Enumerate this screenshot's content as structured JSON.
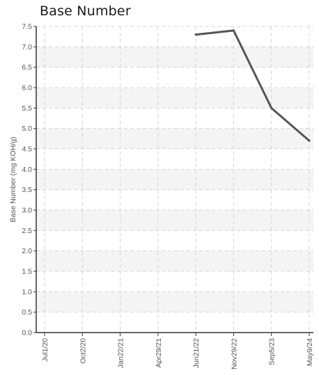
{
  "chart_data": {
    "type": "line",
    "title": "Base Number",
    "ylabel": "Base Number (mg KOH/g)",
    "xlabel": "",
    "categories": [
      "Jul1/20",
      "Oct2/20",
      "Jan22/21",
      "Apr29/21",
      "Jun21/22",
      "Nov29/22",
      "Sep5/23",
      "May9/24"
    ],
    "yticks": [
      "0.0",
      "0.5",
      "1.0",
      "1.5",
      "2.0",
      "2.5",
      "3.0",
      "3.5",
      "4.0",
      "4.5",
      "5.0",
      "5.5",
      "6.0",
      "6.5",
      "7.0",
      "7.5"
    ],
    "ylim": [
      0,
      7.5
    ],
    "series": [
      {
        "values": [
          null,
          null,
          null,
          null,
          7.3,
          7.4,
          5.5,
          4.7
        ]
      }
    ],
    "grid": true,
    "line_color": "#555555"
  }
}
